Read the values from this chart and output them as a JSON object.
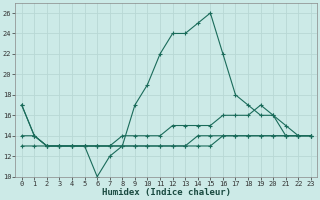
{
  "xlabel": "Humidex (Indice chaleur)",
  "background_color": "#cceae7",
  "grid_color": "#b8d8d5",
  "line_color": "#1a6b5a",
  "hours": [
    0,
    1,
    2,
    3,
    4,
    5,
    6,
    7,
    8,
    9,
    10,
    11,
    12,
    13,
    14,
    15,
    16,
    17,
    18,
    19,
    20,
    21,
    22,
    23
  ],
  "line1": [
    17,
    14,
    13,
    13,
    13,
    13,
    10,
    12,
    13,
    17,
    19,
    22,
    24,
    24,
    25,
    26,
    22,
    18,
    17,
    16,
    16,
    14,
    14,
    14
  ],
  "line2": [
    14,
    14,
    13,
    13,
    13,
    13,
    13,
    13,
    14,
    14,
    14,
    14,
    15,
    15,
    15,
    15,
    16,
    16,
    16,
    17,
    16,
    15,
    14,
    14
  ],
  "line3": [
    13,
    13,
    13,
    13,
    13,
    13,
    13,
    13,
    13,
    13,
    13,
    13,
    13,
    13,
    13,
    13,
    14,
    14,
    14,
    14,
    14,
    14,
    14,
    14
  ],
  "line4": [
    17,
    14,
    13,
    13,
    13,
    13,
    13,
    13,
    13,
    13,
    13,
    13,
    13,
    13,
    14,
    14,
    14,
    14,
    14,
    14,
    14,
    14,
    14,
    14
  ],
  "ylim": [
    10,
    27
  ],
  "yticks": [
    10,
    12,
    14,
    16,
    18,
    20,
    22,
    24,
    26
  ],
  "xticks": [
    0,
    1,
    2,
    3,
    4,
    5,
    6,
    7,
    8,
    9,
    10,
    11,
    12,
    13,
    14,
    15,
    16,
    17,
    18,
    19,
    20,
    21,
    22,
    23
  ],
  "tick_fontsize": 5.0,
  "xlabel_fontsize": 6.5,
  "marker": "+"
}
